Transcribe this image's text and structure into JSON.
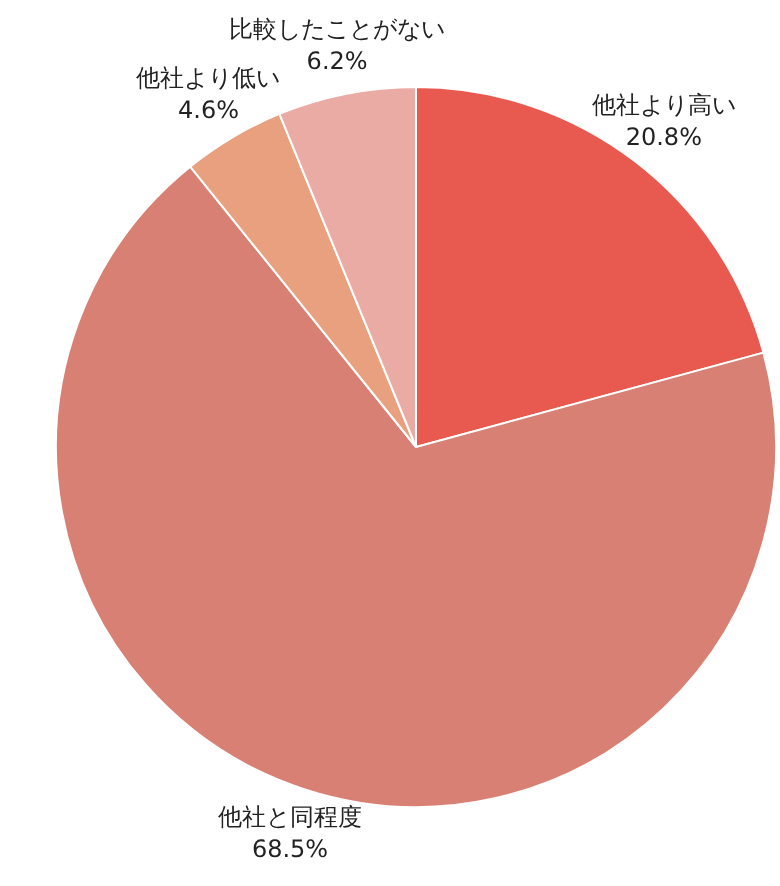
{
  "chart_data": {
    "type": "pie",
    "categories": [
      "他社より高い",
      "他社と同程度",
      "他社より低い",
      "比較したことがない"
    ],
    "values": [
      20.8,
      68.5,
      4.6,
      6.2
    ],
    "value_labels": [
      "20.8%",
      "68.5%",
      "4.6%",
      "6.2%"
    ],
    "colors": [
      "#e85a4f",
      "#d98075",
      "#e8a07e",
      "#ebaba5"
    ],
    "legend": false
  }
}
